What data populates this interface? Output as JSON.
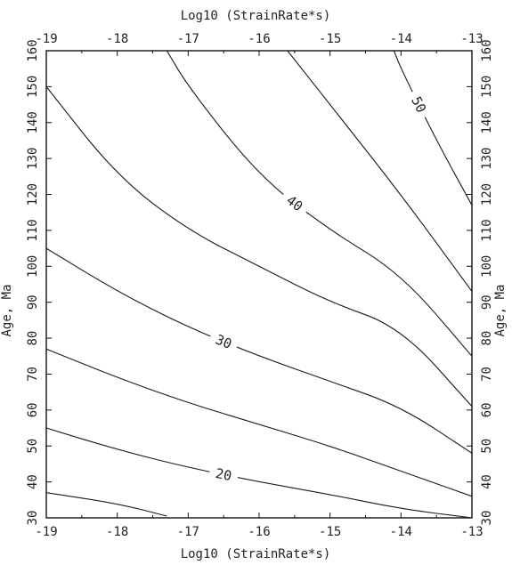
{
  "chart_data": {
    "type": "line",
    "subtype": "contour",
    "xlabel": "Log10 (StrainRate*s)",
    "ylabel": "Age, Ma",
    "xlim": [
      -19,
      -13
    ],
    "ylim": [
      30,
      160
    ],
    "xticks": [
      -19,
      -18,
      -17,
      -16,
      -15,
      -14,
      -13
    ],
    "yticks": [
      30,
      40,
      50,
      60,
      70,
      80,
      90,
      100,
      110,
      120,
      130,
      140,
      150,
      160
    ],
    "grid": false,
    "series": [
      {
        "label": "",
        "x": [
          -19,
          -18,
          -17.3
        ],
        "y": [
          37,
          34,
          30.5
        ]
      },
      {
        "label": "20",
        "x": [
          -19,
          -18,
          -17,
          -16,
          -15,
          -14,
          -13
        ],
        "y": [
          55,
          49,
          44,
          40,
          36.5,
          32.5,
          30
        ]
      },
      {
        "label": "",
        "x": [
          -19,
          -18,
          -17,
          -16,
          -15,
          -14,
          -13
        ],
        "y": [
          77,
          69,
          62,
          56,
          50,
          43,
          36
        ]
      },
      {
        "label": "30",
        "x": [
          -19,
          -18,
          -17,
          -16,
          -15,
          -14,
          -13
        ],
        "y": [
          105,
          93,
          83,
          75,
          68,
          61,
          48
        ]
      },
      {
        "label": "",
        "x": [
          -19,
          -18,
          -17,
          -16,
          -15,
          -14,
          -13
        ],
        "y": [
          150,
          125,
          110,
          100,
          90,
          83,
          61
        ]
      },
      {
        "label": "40",
        "x": [
          -17.3,
          -17,
          -16,
          -15,
          -14,
          -13
        ],
        "y": [
          160,
          150,
          125,
          110,
          98,
          75
        ]
      },
      {
        "label": "",
        "x": [
          -15.6,
          -15,
          -14,
          -13
        ],
        "y": [
          160,
          145,
          120,
          93
        ]
      },
      {
        "label": "50",
        "x": [
          -14.1,
          -14,
          -13.5,
          -13
        ],
        "y": [
          160,
          155,
          135,
          117
        ]
      }
    ]
  }
}
